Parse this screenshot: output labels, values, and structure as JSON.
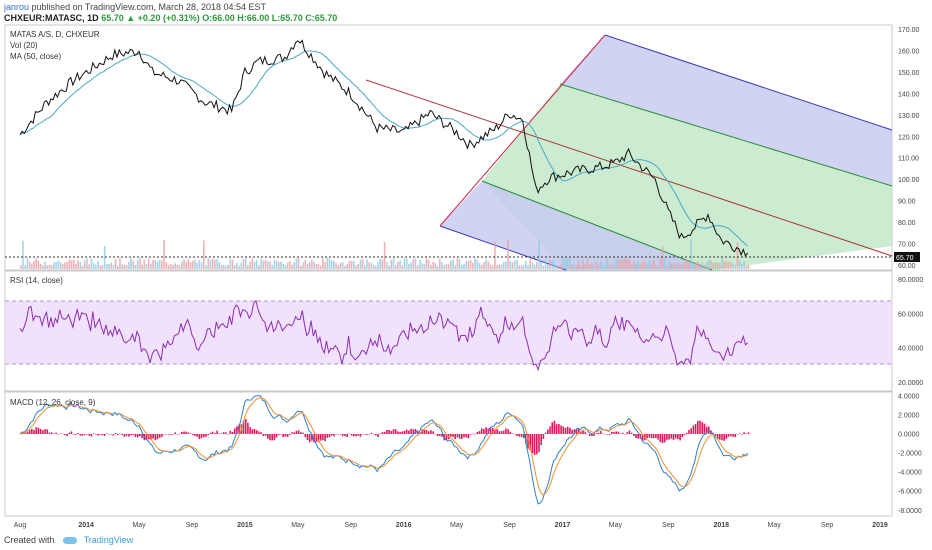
{
  "header": {
    "author": "janrou",
    "published": "published on TradingView.com, March 28, 2018 04:54 EST",
    "symbol_line": "CHXEUR:MATASC, 1D",
    "price": "65.70",
    "change": "+0.20 (+0.31%)",
    "ohlc": "O:66.00 H:66.00 L:65.70 C:65.70"
  },
  "footer": {
    "created_with": "Created with",
    "brand": "TradingView"
  },
  "chart_data": {
    "type": "line",
    "title": "MATAS A/S, D, CHXEUR",
    "overlays": [
      "Vol (20)",
      "MA (50, close)"
    ],
    "x_ticks": [
      "Aug",
      "2014",
      "May",
      "Sep",
      "2015",
      "May",
      "Sep",
      "2016",
      "May",
      "Sep",
      "2017",
      "May",
      "Sep",
      "2018",
      "May",
      "Sep",
      "2019"
    ],
    "price_pane": {
      "y_ticks": [
        "170.00",
        "160.00",
        "150.00",
        "140.00",
        "130.00",
        "120.00",
        "110.00",
        "100.00",
        "90.00",
        "80.00",
        "70.00",
        "60.00"
      ],
      "ylim": [
        58,
        172
      ],
      "last_price": "65.70",
      "series": [
        {
          "x": [
            "2013-08",
            "2013-10",
            "2013-12",
            "2014-03",
            "2014-05",
            "2014-06",
            "2014-08",
            "2014-10",
            "2014-12",
            "2015-01",
            "2015-02",
            "2015-04",
            "2015-05",
            "2015-07",
            "2015-09",
            "2015-11",
            "2016-01",
            "2016-03",
            "2016-05",
            "2016-06",
            "2016-08",
            "2016-09",
            "2016-10",
            "2016-11",
            "2016-12",
            "2017-02",
            "2017-04",
            "2017-05",
            "2017-06",
            "2017-08",
            "2017-09",
            "2017-10",
            "2017-11",
            "2017-12",
            "2018-01",
            "2018-03"
          ],
          "values": [
            121,
            136,
            146,
            158,
            160,
            150,
            146,
            136,
            132,
            150,
            155,
            157,
            166,
            150,
            140,
            124,
            122,
            131,
            122,
            116,
            124,
            131,
            128,
            95,
            101,
            104,
            106,
            108,
            112,
            100,
            85,
            73,
            78,
            84,
            72,
            66
          ]
        }
      ],
      "pitchfork": {
        "median_line": [
          [
            "2015-11",
            150
          ],
          [
            "2019-01",
            69
          ]
        ],
        "levels": [
          {
            "start": [
              "2016-09",
              131
            ],
            "end": [
              "2019-01",
              69
            ]
          }
        ]
      }
    },
    "rsi_pane": {
      "label": "RSI (14, close)",
      "y_ticks": [
        "80.0000",
        "60.0000",
        "40.0000",
        "20.0000"
      ],
      "ylim": [
        15,
        85
      ],
      "band": [
        30,
        70
      ]
    },
    "macd_pane": {
      "label": "MACD (12, 26, close, 9)",
      "y_ticks": [
        "4.0000",
        "2.0000",
        "0.0000",
        "-2.0000",
        "-4.0000",
        "-6.0000",
        "-8.0000"
      ],
      "ylim": [
        -8.6,
        4.4
      ]
    }
  }
}
